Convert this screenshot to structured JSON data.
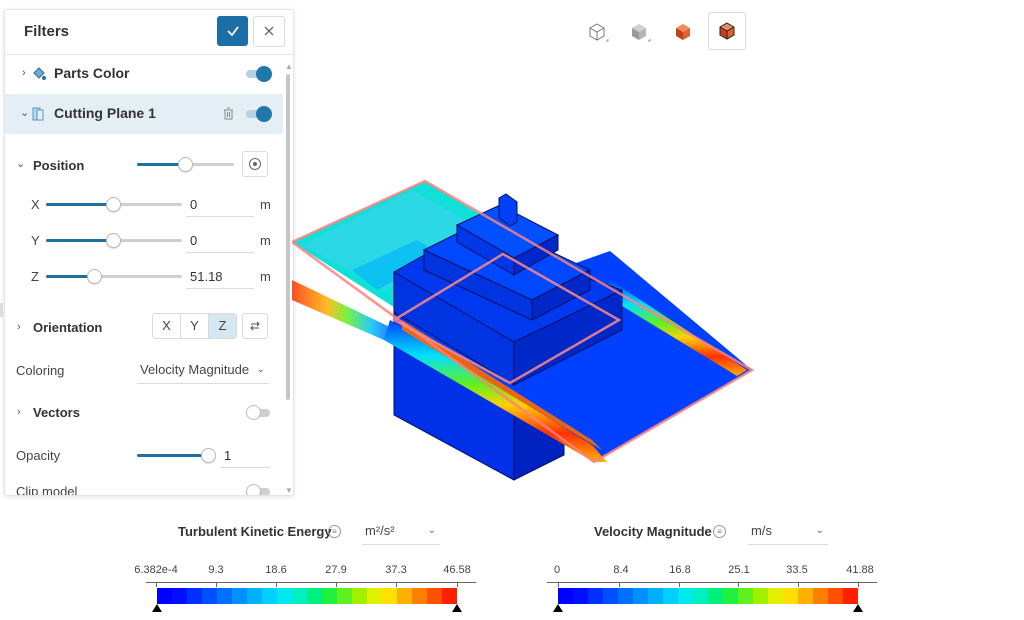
{
  "filters": {
    "title": "Filters",
    "confirm_icon": "check-icon",
    "close_icon": "close-icon",
    "items": [
      {
        "label": "Parts Color",
        "enabled": true,
        "icon": "paint-bucket-icon"
      },
      {
        "label": "Cutting Plane 1",
        "enabled": true,
        "icon": "cutting-plane-icon",
        "selected": true
      }
    ],
    "position": {
      "label": "Position",
      "level": 0.5,
      "x": {
        "axis": "X",
        "value": "0",
        "unit": "m",
        "level": 0.5
      },
      "y": {
        "axis": "Y",
        "value": "0",
        "unit": "m",
        "level": 0.5
      },
      "z": {
        "axis": "Z",
        "value": "51.18",
        "unit": "m",
        "level": 0.36
      }
    },
    "orientation": {
      "label": "Orientation",
      "options": [
        "X",
        "Y",
        "Z"
      ],
      "selected": "Z"
    },
    "coloring": {
      "label": "Coloring",
      "value": "Velocity Magnitude"
    },
    "vectors": {
      "label": "Vectors",
      "enabled": false
    },
    "opacity": {
      "label": "Opacity",
      "value": "1",
      "level": 1.0
    },
    "clip_model": {
      "label": "Clip model",
      "enabled": false
    }
  },
  "view_toolbar": [
    {
      "icon": "wireframe-cube-icon",
      "active": false
    },
    {
      "icon": "solid-cube-icon",
      "active": false
    },
    {
      "icon": "surface-cube-icon",
      "active": false
    },
    {
      "icon": "edges-cube-icon",
      "active": true
    }
  ],
  "legends": [
    {
      "title": "Turbulent Kinetic Energy",
      "unit": "m²/s²",
      "ticks": [
        "6.382e-4",
        "9.3",
        "18.6",
        "27.9",
        "37.3",
        "46.58"
      ]
    },
    {
      "title": "Velocity Magnitude",
      "unit": "m/s",
      "ticks": [
        "0",
        "8.4",
        "16.8",
        "25.1",
        "33.5",
        "41.88"
      ]
    }
  ],
  "colors": {
    "accent": "#1c6fa5",
    "colormap": [
      "#0000ff",
      "#0010ff",
      "#0030ff",
      "#0050ff",
      "#0070ff",
      "#0090ff",
      "#00b0ff",
      "#00d0ff",
      "#00e8f0",
      "#00f0c0",
      "#00f080",
      "#20f040",
      "#60f020",
      "#a0f000",
      "#e0f000",
      "#ffe000",
      "#ffb000",
      "#ff8000",
      "#ff5000",
      "#ff2000"
    ]
  }
}
